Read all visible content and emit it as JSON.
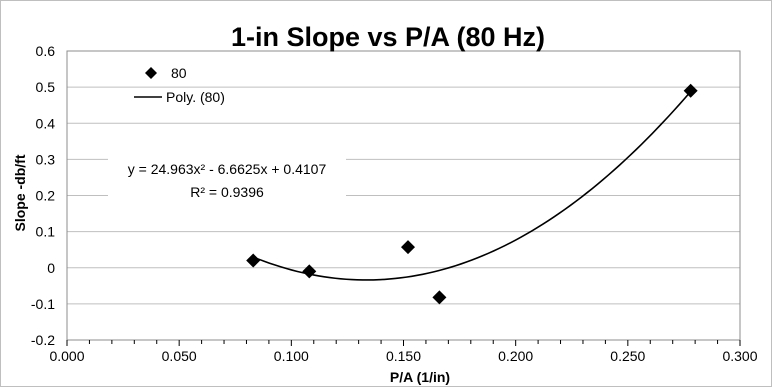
{
  "chart_data": {
    "type": "scatter",
    "title": "1-in Slope vs P/A (80 Hz)",
    "xlabel": "P/A (1/in)",
    "ylabel": "Slope -db/ft",
    "xlim": [
      0,
      0.3
    ],
    "ylim": [
      -0.2,
      0.6
    ],
    "x_ticks": [
      0,
      0.05,
      0.1,
      0.15,
      0.2,
      0.25,
      0.3
    ],
    "x_tick_labels": [
      "0.000",
      "0.050",
      "0.100",
      "0.150",
      "0.200",
      "0.250",
      "0.300"
    ],
    "y_ticks": [
      -0.2,
      -0.1,
      0,
      0.1,
      0.2,
      0.3,
      0.4,
      0.5,
      0.6
    ],
    "y_tick_labels": [
      "-0.2",
      "-0.1",
      "0",
      "0.1",
      "0.2",
      "0.3",
      "0.4",
      "0.5",
      "0.6"
    ],
    "grid": "horizontal",
    "legend_position": "top-left",
    "series": [
      {
        "name": "80",
        "marker": "diamond",
        "color": "#000000",
        "points": [
          {
            "x": 0.083,
            "y": 0.02
          },
          {
            "x": 0.108,
            "y": -0.01
          },
          {
            "x": 0.152,
            "y": 0.057
          },
          {
            "x": 0.166,
            "y": -0.082
          },
          {
            "x": 0.278,
            "y": 0.49
          }
        ]
      }
    ],
    "trendline": {
      "name": "Poly. (80)",
      "type": "polynomial",
      "coefficients": [
        24.963,
        -6.6625,
        0.4107
      ],
      "x_range": [
        0.083,
        0.278
      ],
      "color": "#000000"
    },
    "annotations": {
      "equation": "y = 24.963x² - 6.6625x + 0.4107",
      "r_squared": "R² = 0.9396"
    }
  }
}
